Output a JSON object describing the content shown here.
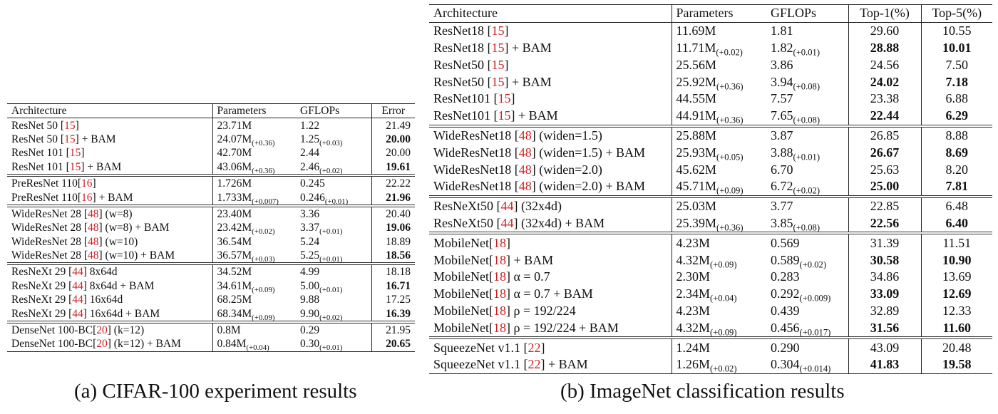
{
  "table_a": {
    "headers": [
      "Architecture",
      "Parameters",
      "GFLOPs",
      "Error"
    ],
    "groups": [
      [
        {
          "name": "ResNet 50 ",
          "ref": "15",
          "suffix": "",
          "params": "23.71M",
          "params_delta": "",
          "flops": "1.22",
          "flops_delta": "",
          "err": "21.49",
          "bold": false
        },
        {
          "name": "ResNet 50 ",
          "ref": "15",
          "suffix": " + BAM",
          "params": "24.07M",
          "params_delta": "(+0.36)",
          "flops": "1.25",
          "flops_delta": "(+0.03)",
          "err": "20.00",
          "bold": true
        },
        {
          "name": "ResNet 101 ",
          "ref": "15",
          "suffix": "",
          "params": "42.70M",
          "params_delta": "",
          "flops": "2.44",
          "flops_delta": "",
          "err": "20.00",
          "bold": false
        },
        {
          "name": "ResNet 101 ",
          "ref": "15",
          "suffix": " + BAM",
          "params": "43.06M",
          "params_delta": "(+0.36)",
          "flops": "2.46",
          "flops_delta": "(+0.02)",
          "err": "19.61",
          "bold": true
        }
      ],
      [
        {
          "name": "PreResNet 110",
          "ref": "16",
          "suffix": "",
          "params": "1.726M",
          "params_delta": "",
          "flops": "0.245",
          "flops_delta": "",
          "err": "22.22",
          "bold": false
        },
        {
          "name": "PreResNet 110",
          "ref": "16",
          "suffix": " + BAM",
          "params": "1.733M",
          "params_delta": "(+0.007)",
          "flops": "0.246",
          "flops_delta": "(+0.01)",
          "err": "21.96",
          "bold": true
        }
      ],
      [
        {
          "name": "WideResNet 28 ",
          "ref": "48",
          "suffix": " (w=8)",
          "params": "23.40M",
          "params_delta": "",
          "flops": "3.36",
          "flops_delta": "",
          "err": "20.40",
          "bold": false
        },
        {
          "name": "WideResNet 28 ",
          "ref": "48",
          "suffix": " (w=8) + BAM",
          "params": "23.42M",
          "params_delta": "(+0.02)",
          "flops": "3.37",
          "flops_delta": "(+0.01)",
          "err": "19.06",
          "bold": true
        },
        {
          "name": "WideResNet 28 ",
          "ref": "48",
          "suffix": " (w=10)",
          "params": "36.54M",
          "params_delta": "",
          "flops": "5.24",
          "flops_delta": "",
          "err": "18.89",
          "bold": false
        },
        {
          "name": "WideResNet 28 ",
          "ref": "48",
          "suffix": " (w=10) + BAM",
          "params": "36.57M",
          "params_delta": "(+0.03)",
          "flops": "5.25",
          "flops_delta": "(+0.01)",
          "err": "18.56",
          "bold": true
        }
      ],
      [
        {
          "name": "ResNeXt 29 ",
          "ref": "44",
          "suffix": " 8x64d",
          "params": "34.52M",
          "params_delta": "",
          "flops": "4.99",
          "flops_delta": "",
          "err": "18.18",
          "bold": false
        },
        {
          "name": "ResNeXt 29 ",
          "ref": "44",
          "suffix": " 8x64d + BAM",
          "params": "34.61M",
          "params_delta": "(+0.09)",
          "flops": "5.00",
          "flops_delta": "(+0.01)",
          "err": "16.71",
          "bold": true
        },
        {
          "name": "ResNeXt 29 ",
          "ref": "44",
          "suffix": " 16x64d",
          "params": "68.25M",
          "params_delta": "",
          "flops": "9.88",
          "flops_delta": "",
          "err": "17.25",
          "bold": false
        },
        {
          "name": "ResNeXt 29 ",
          "ref": "44",
          "suffix": " 16x64d + BAM",
          "params": "68.34M",
          "params_delta": "(+0.09)",
          "flops": "9.90",
          "flops_delta": "(+0.02)",
          "err": "16.39",
          "bold": true
        }
      ],
      [
        {
          "name": "DenseNet 100-BC",
          "ref": "20",
          "suffix": " (k=12)",
          "params": "0.8M",
          "params_delta": "",
          "flops": "0.29",
          "flops_delta": "",
          "err": "21.95",
          "bold": false
        },
        {
          "name": "DenseNet 100-BC",
          "ref": "20",
          "suffix": " (k=12) + BAM",
          "params": "0.84M",
          "params_delta": "(+0.04)",
          "flops": "0.30",
          "flops_delta": "(+0.01)",
          "err": "20.65",
          "bold": true
        }
      ]
    ],
    "caption": "(a) CIFAR-100 experiment results"
  },
  "table_b": {
    "headers": [
      "Architecture",
      "Parameters",
      "GFLOPs",
      "Top-1(%)",
      "Top-5(%)"
    ],
    "groups": [
      [
        {
          "name": "ResNet18 ",
          "ref": "15",
          "suffix": "",
          "params": "11.69M",
          "params_delta": "",
          "flops": "1.81",
          "flops_delta": "",
          "top1": "29.60",
          "top5": "10.55",
          "bold": false
        },
        {
          "name": "ResNet18 ",
          "ref": "15",
          "suffix": " + BAM",
          "params": "11.71M",
          "params_delta": "(+0.02)",
          "flops": "1.82",
          "flops_delta": "(+0.01)",
          "top1": "28.88",
          "top5": "10.01",
          "bold": true
        },
        {
          "name": "ResNet50 ",
          "ref": "15",
          "suffix": "",
          "params": "25.56M",
          "params_delta": "",
          "flops": "3.86",
          "flops_delta": "",
          "top1": "24.56",
          "top5": "7.50",
          "bold": false
        },
        {
          "name": "ResNet50 ",
          "ref": "15",
          "suffix": " + BAM",
          "params": "25.92M",
          "params_delta": "(+0.36)",
          "flops": "3.94",
          "flops_delta": "(+0.08)",
          "top1": "24.02",
          "top5": "7.18",
          "bold": true
        },
        {
          "name": "ResNet101 ",
          "ref": "15",
          "suffix": "",
          "params": "44.55M",
          "params_delta": "",
          "flops": "7.57",
          "flops_delta": "",
          "top1": "23.38",
          "top5": "6.88",
          "bold": false
        },
        {
          "name": "ResNet101 ",
          "ref": "15",
          "suffix": " + BAM",
          "params": "44.91M",
          "params_delta": "(+0.36)",
          "flops": "7.65",
          "flops_delta": "(+0.08)",
          "top1": "22.44",
          "top5": "6.29",
          "bold": true
        }
      ],
      [
        {
          "name": "WideResNet18 ",
          "ref": "48",
          "suffix": " (widen=1.5)",
          "params": "25.88M",
          "params_delta": "",
          "flops": "3.87",
          "flops_delta": "",
          "top1": "26.85",
          "top5": "8.88",
          "bold": false
        },
        {
          "name": "WideResNet18 ",
          "ref": "48",
          "suffix": " (widen=1.5) + BAM",
          "params": "25.93M",
          "params_delta": "(+0.05)",
          "flops": "3.88",
          "flops_delta": "(+0.01)",
          "top1": "26.67",
          "top5": "8.69",
          "bold": true
        },
        {
          "name": "WideResNet18 ",
          "ref": "48",
          "suffix": " (widen=2.0)",
          "params": "45.62M",
          "params_delta": "",
          "flops": "6.70",
          "flops_delta": "",
          "top1": "25.63",
          "top5": "8.20",
          "bold": false
        },
        {
          "name": "WideResNet18 ",
          "ref": "48",
          "suffix": " (widen=2.0) + BAM",
          "params": "45.71M",
          "params_delta": "(+0.09)",
          "flops": "6.72",
          "flops_delta": "(+0.02)",
          "top1": "25.00",
          "top5": "7.81",
          "bold": true
        }
      ],
      [
        {
          "name": "ResNeXt50 ",
          "ref": "44",
          "suffix": " (32x4d)",
          "params": "25.03M",
          "params_delta": "",
          "flops": "3.77",
          "flops_delta": "",
          "top1": "22.85",
          "top5": "6.48",
          "bold": false
        },
        {
          "name": "ResNeXt50 ",
          "ref": "44",
          "suffix": " (32x4d) + BAM",
          "params": "25.39M",
          "params_delta": "(+0.36)",
          "flops": "3.85",
          "flops_delta": "(+0.08)",
          "top1": "22.56",
          "top5": "6.40",
          "bold": true
        }
      ],
      [
        {
          "name": "MobileNet",
          "ref": "18",
          "suffix": "",
          "params": "4.23M",
          "params_delta": "",
          "flops": "0.569",
          "flops_delta": "",
          "top1": "31.39",
          "top5": "11.51",
          "bold": false
        },
        {
          "name": "MobileNet",
          "ref": "18",
          "suffix": " + BAM",
          "params": "4.32M",
          "params_delta": "(+0.09)",
          "flops": "0.589",
          "flops_delta": "(+0.02)",
          "top1": "30.58",
          "top5": "10.90",
          "bold": true
        },
        {
          "name": "MobileNet",
          "ref": "18",
          "suffix": " α = 0.7",
          "params": "2.30M",
          "params_delta": "",
          "flops": "0.283",
          "flops_delta": "",
          "top1": "34.86",
          "top5": "13.69",
          "bold": false
        },
        {
          "name": "MobileNet",
          "ref": "18",
          "suffix": " α = 0.7 + BAM",
          "params": "2.34M",
          "params_delta": "(+0.04)",
          "flops": "0.292",
          "flops_delta": "(+0.009)",
          "top1": "33.09",
          "top5": "12.69",
          "bold": true
        },
        {
          "name": "MobileNet",
          "ref": "18",
          "suffix": " ρ = 192/224",
          "params": "4.23M",
          "params_delta": "",
          "flops": "0.439",
          "flops_delta": "",
          "top1": "32.89",
          "top5": "12.33",
          "bold": false
        },
        {
          "name": "MobileNet",
          "ref": "18",
          "suffix": " ρ = 192/224 + BAM",
          "params": "4.32M",
          "params_delta": "(+0.09)",
          "flops": "0.456",
          "flops_delta": "(+0.017)",
          "top1": "31.56",
          "top5": "11.60",
          "bold": true
        }
      ],
      [
        {
          "name": "SqueezeNet v1.1 ",
          "ref": "22",
          "suffix": "",
          "params": "1.24M",
          "params_delta": "",
          "flops": "0.290",
          "flops_delta": "",
          "top1": "43.09",
          "top5": "20.48",
          "bold": false
        },
        {
          "name": "SqueezeNet v1.1 ",
          "ref": "22",
          "suffix": " + BAM",
          "params": "1.26M",
          "params_delta": "(+0.02)",
          "flops": "0.304",
          "flops_delta": "(+0.014)",
          "top1": "41.83",
          "top5": "19.58",
          "bold": true
        }
      ]
    ],
    "caption": "(b) ImageNet classification results"
  }
}
